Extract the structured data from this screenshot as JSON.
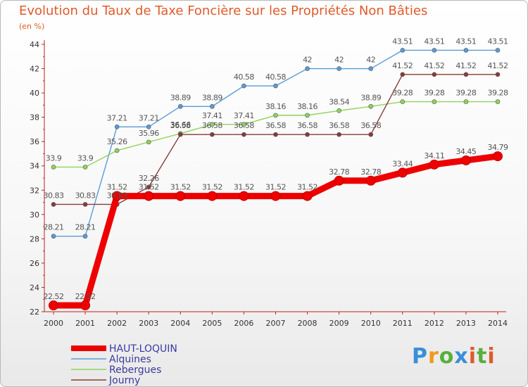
{
  "title": "Evolution du Taux de Taxe Foncière sur les Propriétés Non Bâties",
  "unit_label": "(en %)",
  "logo_text": "Proxiti",
  "chart_data": {
    "type": "line",
    "x": [
      "2000",
      "2001",
      "2002",
      "2003",
      "2004",
      "2005",
      "2006",
      "2007",
      "2008",
      "2009",
      "2010",
      "2011",
      "2012",
      "2013",
      "2014"
    ],
    "ylim": [
      22,
      44
    ],
    "yticks": [
      22,
      24,
      26,
      28,
      30,
      32,
      34,
      36,
      38,
      40,
      42,
      44
    ],
    "grid": false,
    "legend_position": "bottom-left",
    "series": [
      {
        "name": "HAUT-LOQUIN",
        "color": "#ee0000",
        "emphasis": true,
        "values": [
          22.52,
          22.52,
          31.52,
          31.52,
          31.52,
          31.52,
          31.52,
          31.52,
          31.52,
          32.78,
          32.78,
          33.44,
          34.11,
          34.45,
          34.79
        ],
        "labels": [
          "22.52",
          "22.52",
          "31.52",
          "31.52",
          "31.52",
          "31.52",
          "31.52",
          "31.52",
          "31.52",
          "32.78",
          "32.78",
          "33.44",
          "34.11",
          "34.45",
          "34.79"
        ]
      },
      {
        "name": "Alquines",
        "color": "#5b9bd5",
        "emphasis": false,
        "values": [
          28.21,
          28.21,
          37.21,
          37.21,
          38.89,
          38.89,
          40.58,
          40.58,
          42,
          42,
          42,
          43.51,
          43.51,
          43.51,
          43.51
        ],
        "labels": [
          "28.21",
          "28.21",
          "37.21",
          "37.21",
          "38.89",
          "38.89",
          "40.58",
          "40.58",
          "42",
          "42",
          "42",
          "43.51",
          "43.51",
          "43.51",
          "43.51"
        ]
      },
      {
        "name": "Rebergues",
        "color": "#8fd45a",
        "emphasis": false,
        "values": [
          33.9,
          33.9,
          35.26,
          35.96,
          36.66,
          37.41,
          37.41,
          38.16,
          38.16,
          38.54,
          38.89,
          39.28,
          39.28,
          39.28,
          39.28
        ],
        "labels": [
          "33.9",
          "33.9",
          "35.26",
          "35.96",
          "36.66",
          "37.41",
          "37.41",
          "38.16",
          "38.16",
          "38.54",
          "38.89",
          "39.28",
          "39.28",
          "39.28",
          "39.28"
        ]
      },
      {
        "name": "Journy",
        "color": "#8a3a3a",
        "emphasis": false,
        "values": [
          30.83,
          30.83,
          30.83,
          32.26,
          36.58,
          36.58,
          36.58,
          36.58,
          36.58,
          36.58,
          36.58,
          41.52,
          41.52,
          41.52,
          41.52
        ],
        "labels": [
          "30.83",
          "30.83",
          "30.83",
          "32.26",
          "36.58",
          "36.58",
          "36.58",
          "36.58",
          "36.58",
          "36.58",
          "36.58",
          "41.52",
          "41.52",
          "41.52",
          "41.52"
        ]
      }
    ]
  }
}
